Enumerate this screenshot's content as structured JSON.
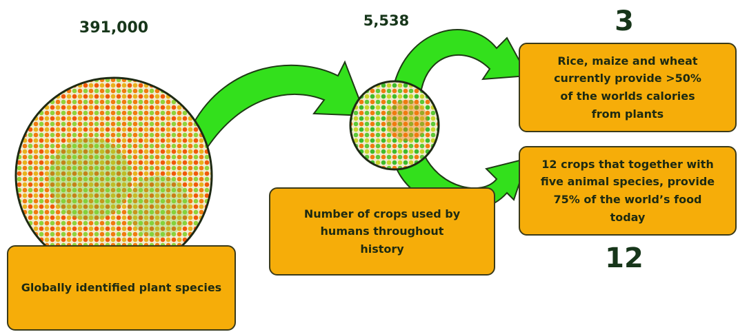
{
  "species": {
    "count": "391,000",
    "label": "Globally identified plant species"
  },
  "crops": {
    "count": "5,538",
    "label": "Number of crops used by humans throughout history"
  },
  "staples": {
    "count": "3",
    "label": "Rice, maize and wheat currently provide >50% of the worlds calories from plants"
  },
  "food_crops": {
    "count": "12",
    "label": "12 crops that together with five animal species, provide 75% of the world’s food today"
  }
}
